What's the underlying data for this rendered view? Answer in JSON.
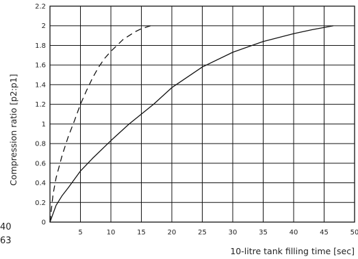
{
  "chart_data": {
    "type": "line",
    "xlabel": "10-litre tank filling time [sec]",
    "ylabel": "Compression ratio [p2:p1]",
    "xlim": [
      0,
      50
    ],
    "ylim": [
      0,
      2.2
    ],
    "x_ticks": [
      "5",
      "10",
      "15",
      "20",
      "25",
      "30",
      "35",
      "40",
      "45",
      "50"
    ],
    "y_ticks": [
      "0",
      "0.2",
      "0.4",
      "0.6",
      "0.8",
      "1",
      "1.2",
      "1.4",
      "1.6",
      "1.8",
      "2",
      "2.2"
    ],
    "grid": true,
    "series": [
      {
        "style": "dashed",
        "color": "#111111",
        "x": [
          0,
          0.5,
          1,
          2,
          3,
          4,
          5,
          6,
          7,
          8,
          9,
          10,
          11,
          12,
          13,
          14,
          15,
          16.5
        ],
        "y": [
          0,
          0.28,
          0.45,
          0.68,
          0.87,
          1.03,
          1.2,
          1.34,
          1.47,
          1.58,
          1.67,
          1.74,
          1.8,
          1.86,
          1.9,
          1.94,
          1.97,
          2.0
        ]
      },
      {
        "style": "solid",
        "color": "#111111",
        "x": [
          0,
          1,
          2,
          3,
          5,
          7,
          10,
          13,
          15,
          17,
          20,
          25,
          30,
          35,
          40,
          43,
          46.5
        ],
        "y": [
          0,
          0.17,
          0.27,
          0.35,
          0.52,
          0.65,
          0.83,
          1.0,
          1.1,
          1.2,
          1.37,
          1.58,
          1.73,
          1.84,
          1.92,
          1.96,
          2.0
        ]
      }
    ]
  },
  "side_notes": [
    "40",
    "63"
  ]
}
